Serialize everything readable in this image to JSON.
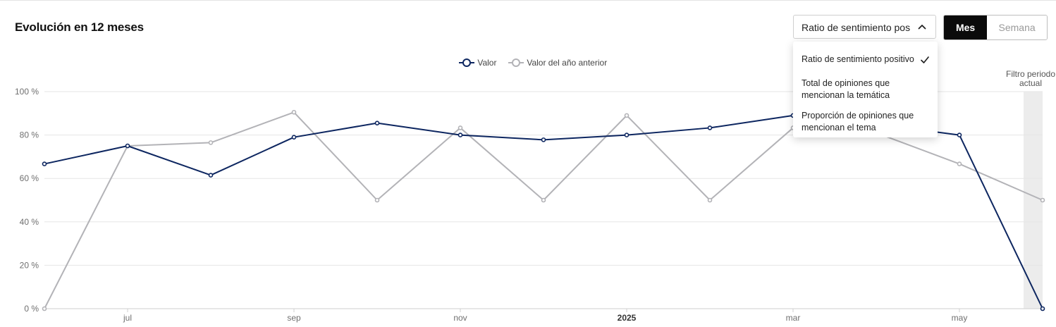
{
  "title": "Evolución en 12 meses",
  "metric_select": {
    "value": "Ratio de sentimiento positivo",
    "options": [
      "Ratio de sentimiento positivo",
      "Total de opiniones que mencionan la temática",
      "Proporción de opiniones que mencionan el tema"
    ],
    "selected_index": 0,
    "chevron_icon": "chevron-up-icon",
    "check_icon": "check-icon"
  },
  "period_toggle": {
    "options": [
      "Mes",
      "Semana"
    ],
    "active": "Mes"
  },
  "filter_band_label": "Filtro periodo actual",
  "colors": {
    "valor": "#0d2660",
    "anterior": "#b3b3b7",
    "toggle_active_bg": "#0b0b0b",
    "filter_band": "#ececec"
  },
  "chart_data": {
    "type": "line",
    "x": [
      "2024-06",
      "2024-07",
      "2024-08",
      "2024-09",
      "2024-10",
      "2024-11",
      "2024-12",
      "2025-01",
      "2025-02",
      "2025-03",
      "2025-04",
      "2025-05",
      "2025-06"
    ],
    "x_tick_labels": [
      {
        "label": "jul",
        "index": 1
      },
      {
        "label": "sep",
        "index": 3
      },
      {
        "label": "nov",
        "index": 5
      },
      {
        "label": "2025",
        "index": 7,
        "bold": true
      },
      {
        "label": "mar",
        "index": 9
      },
      {
        "label": "may",
        "index": 11
      }
    ],
    "series": [
      {
        "name": "Valor",
        "values": [
          66.7,
          75,
          61.5,
          79,
          85.5,
          80,
          77.8,
          80,
          83.3,
          89,
          85,
          80,
          0
        ]
      },
      {
        "name": "Valor del año anterior",
        "values": [
          0,
          75,
          76.5,
          90.5,
          50,
          83.3,
          50,
          89,
          50,
          83.3,
          81,
          66.7,
          50
        ]
      }
    ],
    "ylim": [
      0,
      100
    ],
    "y_ticks": [
      0,
      20,
      40,
      60,
      80,
      100
    ],
    "y_tick_suffix": " %",
    "grid": true,
    "legend": "top-center",
    "highlight_last_period": true
  }
}
